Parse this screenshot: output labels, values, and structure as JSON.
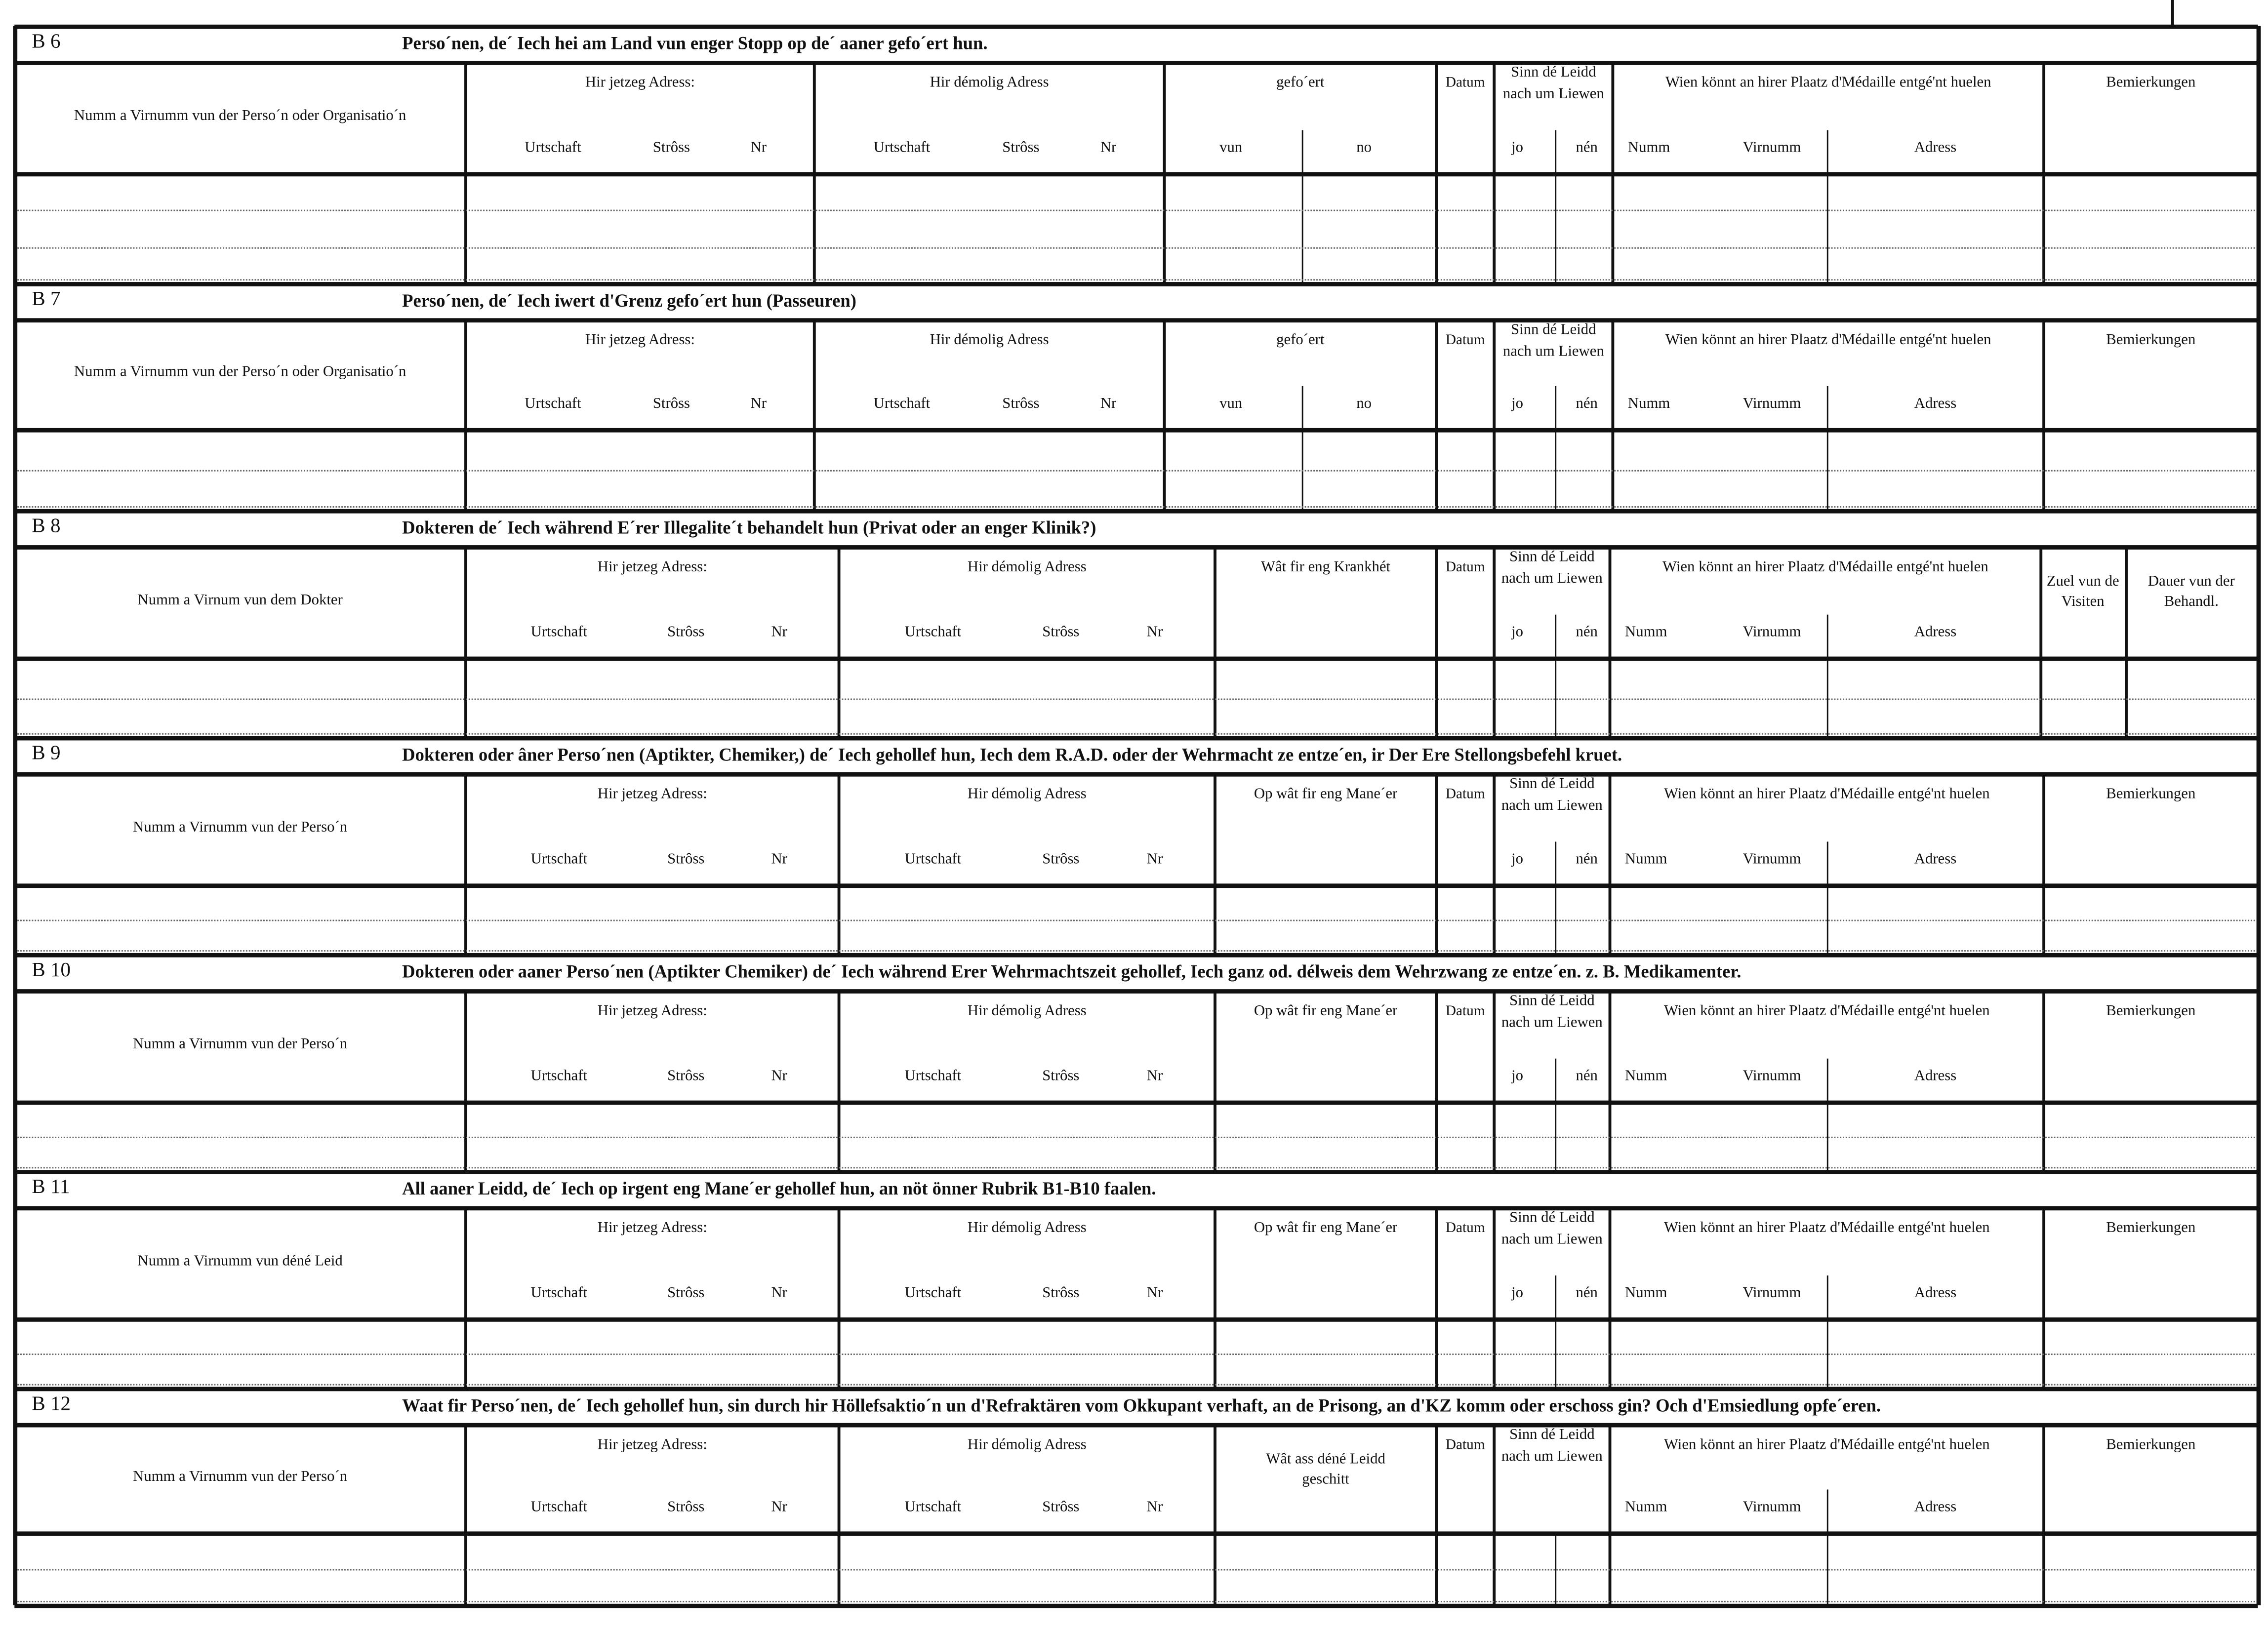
{
  "address_sub": [
    "Urtschaft",
    "Strôss",
    "Nr"
  ],
  "alive_sub": [
    "jo",
    "nén"
  ],
  "medal_sub": [
    "Numm",
    "Virnumm",
    "Adress"
  ],
  "common": {
    "current_address": "Hir jetzeg Adress:",
    "former_address": "Hir démolig Adress",
    "datum": "Datum",
    "alive": "Sinn  dé Leidd  nach um Liewen",
    "medal": "Wien  könnt  an  hirer  Plaatz  d'Médaille entgé'nt huelen",
    "remarks": "Bemierkungen"
  },
  "sections": [
    {
      "label": "B 6",
      "title": "Perso´nen, de´ Iech hei am Land vun enger Stopp  op de´ aaner gefo´ert hun.",
      "name_header": "Numm a Virnumm vun der Perso´n oder Organisatio´n",
      "col3": "gefo´ert",
      "col3_sub": [
        "vun",
        "no"
      ]
    },
    {
      "label": "B 7",
      "title": "Perso´nen, de´ Iech iwert d'Grenz gefo´ert hun  (Passeuren)",
      "name_header": "Numm a Virnumm vun der Perso´n oder Organisatio´n",
      "col3": "gefo´ert",
      "col3_sub": [
        "vun",
        "no"
      ]
    },
    {
      "label": "B 8",
      "title": "Dokteren de´ Iech während E´rer Illegalite´t behandelt hun (Privat  oder an enger Klinik?)",
      "name_header": "Numm a Virnum vun dem Dokter",
      "col3": "Wât  fir  eng  Krankhét",
      "last_cols": [
        "Zuel vun de Visiten",
        "Dauer vun der Behandl."
      ]
    },
    {
      "label": "B 9",
      "title": "Dokteren oder âner Perso´nen (Aptikter, Chemiker,) de´ Iech gehollef hun, Iech dem R.A.D. oder der Wehrmacht ze entze´en, ir Der Ere Stellongsbefehl kruet.",
      "name_header": "Numm a Virnumm vun der Perso´n",
      "col3": "Op wât fir eng Mane´er"
    },
    {
      "label": "B 10",
      "title": "Dokteren oder aaner Perso´nen (Aptikter Chemiker) de´ Iech während Erer Wehrmachtszeit gehollef, Iech ganz od. délweis dem Wehrzwang ze entze´en. z. B. Medikamenter.",
      "name_header": "Numm a Virnumm vun der Perso´n",
      "col3": "Op wât fir eng Mane´er"
    },
    {
      "label": "B 11",
      "title": "All aaner Leidd, de´ Iech op irgent eng Mane´er gehollef hun, an nöt önner Rubrik B1-B10 faalen.",
      "name_header": "Numm a Virnumm vun déné Leid",
      "col3": "Op wât fir eng Mane´er"
    },
    {
      "label": "B 12",
      "title": "Waat fir Perso´nen, de´ Iech gehollef hun, sin durch hir Höllefsaktio´n un d'Refraktären vom Okkupant verhaft, an de Prisong, an d'KZ komm oder  erschoss gin? Och d'Emsiedlung opfe´eren.",
      "name_header": "Numm a Virnumm vun der Perso´n",
      "col3": "Wât ass déné Leidd geschitt",
      "no_alive_sub": true
    }
  ]
}
